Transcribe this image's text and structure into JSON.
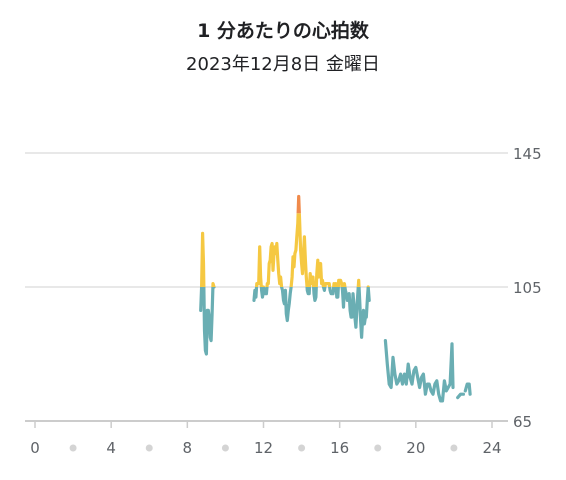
{
  "header": {
    "title": "1 分あたりの心拍数",
    "subtitle": "2023年12月8日 金曜日"
  },
  "colors": {
    "low": "#6aaeb3",
    "mid": "#f5c842",
    "high": "#f08a4b",
    "grid": "#d0d0d0",
    "axis": "#cccccc",
    "dot": "#d4d4d4"
  },
  "chart_data": {
    "type": "line",
    "xlim": [
      0,
      24
    ],
    "ylim": [
      65,
      145
    ],
    "x_ticks": [
      0,
      4,
      8,
      12,
      16,
      20,
      24
    ],
    "x_minor_ticks": [
      2,
      6,
      10,
      14,
      18,
      22
    ],
    "y_ticks": [
      65,
      105,
      145
    ],
    "zones": [
      {
        "name": "low",
        "max": 105
      },
      {
        "name": "mid",
        "max": 127
      },
      {
        "name": "high",
        "max": 145
      }
    ],
    "segments": [
      [
        [
          8.7,
          98
        ],
        [
          8.75,
          105
        ],
        [
          8.8,
          121
        ],
        [
          8.85,
          112
        ],
        [
          8.9,
          92
        ],
        [
          8.95,
          86
        ],
        [
          9.0,
          85
        ],
        [
          9.05,
          98
        ],
        [
          9.1,
          98
        ],
        [
          9.15,
          96
        ],
        [
          9.2,
          90
        ],
        [
          9.25,
          89
        ],
        [
          9.3,
          97
        ],
        [
          9.35,
          106
        ],
        [
          9.4,
          105
        ]
      ],
      [
        [
          11.5,
          101
        ],
        [
          11.55,
          104
        ],
        [
          11.6,
          102
        ],
        [
          11.65,
          106
        ],
        [
          11.7,
          106
        ],
        [
          11.75,
          106
        ],
        [
          11.8,
          117
        ],
        [
          11.85,
          108
        ],
        [
          11.9,
          104
        ],
        [
          11.95,
          102
        ],
        [
          12.0,
          105
        ],
        [
          12.05,
          103
        ],
        [
          12.1,
          103
        ],
        [
          12.15,
          103
        ],
        [
          12.2,
          106
        ],
        [
          12.25,
          106
        ],
        [
          12.3,
          112
        ],
        [
          12.35,
          113
        ],
        [
          12.4,
          117
        ],
        [
          12.45,
          118
        ],
        [
          12.5,
          110
        ],
        [
          12.55,
          115
        ],
        [
          12.6,
          117
        ],
        [
          12.65,
          115
        ],
        [
          12.7,
          118
        ],
        [
          12.75,
          113
        ],
        [
          12.8,
          109
        ],
        [
          12.85,
          106
        ],
        [
          12.9,
          108
        ],
        [
          12.95,
          105
        ],
        [
          13.0,
          104
        ],
        [
          13.05,
          101
        ],
        [
          13.1,
          100
        ],
        [
          13.15,
          104
        ],
        [
          13.2,
          97
        ],
        [
          13.25,
          95
        ],
        [
          13.3,
          98
        ],
        [
          13.35,
          100
        ],
        [
          13.4,
          103
        ],
        [
          13.45,
          105
        ],
        [
          13.5,
          108
        ],
        [
          13.55,
          114
        ],
        [
          13.6,
          111
        ],
        [
          13.65,
          115
        ],
        [
          13.7,
          116
        ],
        [
          13.75,
          120
        ],
        [
          13.8,
          124
        ],
        [
          13.85,
          132
        ],
        [
          13.9,
          124
        ],
        [
          13.95,
          116
        ],
        [
          14.0,
          112
        ],
        [
          14.05,
          109
        ],
        [
          14.1,
          115
        ],
        [
          14.15,
          120
        ],
        [
          14.2,
          113
        ],
        [
          14.25,
          108
        ],
        [
          14.3,
          104
        ],
        [
          14.35,
          103
        ],
        [
          14.4,
          103
        ],
        [
          14.45,
          109
        ],
        [
          14.5,
          106
        ],
        [
          14.55,
          107
        ],
        [
          14.6,
          108
        ],
        [
          14.65,
          103
        ],
        [
          14.7,
          101
        ],
        [
          14.75,
          102
        ],
        [
          14.8,
          109
        ],
        [
          14.85,
          113
        ],
        [
          14.9,
          108
        ],
        [
          14.95,
          111
        ],
        [
          15.0,
          112
        ],
        [
          15.05,
          106
        ],
        [
          15.1,
          107
        ],
        [
          15.15,
          105
        ],
        [
          15.2,
          104
        ],
        [
          15.25,
          106
        ],
        [
          15.3,
          106
        ],
        [
          15.35,
          106
        ],
        [
          15.4,
          106
        ],
        [
          15.45,
          106
        ],
        [
          15.5,
          104
        ],
        [
          15.55,
          103
        ],
        [
          15.6,
          103
        ],
        [
          15.65,
          103
        ],
        [
          15.7,
          106
        ],
        [
          15.75,
          104
        ],
        [
          15.8,
          106
        ],
        [
          15.85,
          102
        ],
        [
          15.9,
          102
        ],
        [
          15.95,
          107
        ],
        [
          16.0,
          107
        ],
        [
          16.05,
          107
        ],
        [
          16.1,
          106
        ],
        [
          16.15,
          104
        ],
        [
          16.2,
          99
        ],
        [
          16.25,
          106
        ],
        [
          16.3,
          104
        ],
        [
          16.35,
          103
        ],
        [
          16.4,
          101
        ],
        [
          16.45,
          102
        ],
        [
          16.5,
          103
        ],
        [
          16.55,
          98
        ],
        [
          16.6,
          96
        ],
        [
          16.65,
          96
        ],
        [
          16.7,
          103
        ],
        [
          16.75,
          100
        ],
        [
          16.8,
          96
        ],
        [
          16.85,
          93
        ],
        [
          16.9,
          98
        ],
        [
          16.95,
          103
        ],
        [
          17.0,
          107
        ],
        [
          17.05,
          101
        ],
        [
          17.1,
          95
        ],
        [
          17.15,
          90
        ],
        [
          17.2,
          95
        ],
        [
          17.25,
          98
        ],
        [
          17.3,
          94
        ],
        [
          17.35,
          96
        ],
        [
          17.4,
          96
        ],
        [
          17.45,
          101
        ],
        [
          17.5,
          105
        ],
        [
          17.55,
          101
        ]
      ],
      [
        [
          18.4,
          89
        ],
        [
          18.5,
          82
        ],
        [
          18.6,
          76
        ],
        [
          18.7,
          75
        ],
        [
          18.8,
          84
        ],
        [
          18.9,
          79
        ],
        [
          19.0,
          76
        ],
        [
          19.1,
          77
        ],
        [
          19.2,
          79
        ],
        [
          19.3,
          76
        ],
        [
          19.4,
          79
        ],
        [
          19.5,
          76
        ],
        [
          19.6,
          82
        ],
        [
          19.7,
          78
        ],
        [
          19.8,
          76
        ],
        [
          19.9,
          80
        ],
        [
          20.0,
          81
        ],
        [
          20.1,
          78
        ],
        [
          20.2,
          75
        ],
        [
          20.3,
          78
        ],
        [
          20.4,
          79
        ],
        [
          20.5,
          73
        ],
        [
          20.6,
          76
        ],
        [
          20.7,
          76
        ],
        [
          20.8,
          74
        ],
        [
          20.9,
          73
        ],
        [
          21.0,
          76
        ],
        [
          21.1,
          77
        ],
        [
          21.2,
          73
        ],
        [
          21.3,
          71
        ],
        [
          21.4,
          71
        ],
        [
          21.5,
          77
        ],
        [
          21.6,
          74
        ],
        [
          21.7,
          75
        ],
        [
          21.8,
          76
        ],
        [
          21.9,
          88
        ],
        [
          21.95,
          75
        ]
      ],
      [
        [
          22.2,
          72
        ],
        [
          22.35,
          73
        ],
        [
          22.5,
          73
        ]
      ],
      [
        [
          22.6,
          74
        ],
        [
          22.7,
          76
        ],
        [
          22.8,
          76
        ],
        [
          22.85,
          73
        ]
      ]
    ]
  }
}
